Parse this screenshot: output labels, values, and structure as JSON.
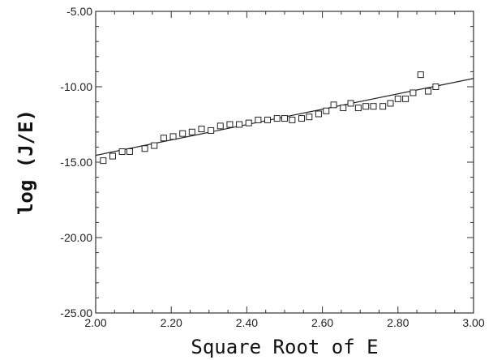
{
  "chart_data": {
    "type": "scatter",
    "title": "",
    "xlabel": "Square Root of E",
    "ylabel": "log  (J/E)",
    "xlim": [
      2.0,
      3.0
    ],
    "ylim": [
      -25.0,
      -5.0
    ],
    "x_ticks": [
      2.0,
      2.2,
      2.4,
      2.6,
      2.8,
      3.0
    ],
    "x_tick_labels": [
      "2.00",
      "2.20",
      "2.40",
      "2.60",
      "2.80",
      "3.00"
    ],
    "y_ticks": [
      -5.0,
      -10.0,
      -15.0,
      -20.0,
      -25.0
    ],
    "y_tick_labels": [
      "-5.00",
      "-10.00",
      "-15.00",
      "-20.00",
      "-25.00"
    ],
    "grid": false,
    "marker": "open-square",
    "series": [
      {
        "x": [
          2.02,
          2.045,
          2.07,
          2.09,
          2.13,
          2.155,
          2.18,
          2.205,
          2.23,
          2.255,
          2.28,
          2.305,
          2.33,
          2.355,
          2.38,
          2.405,
          2.43,
          2.455,
          2.48,
          2.5,
          2.52,
          2.545,
          2.565,
          2.59,
          2.61,
          2.63,
          2.655,
          2.675,
          2.695,
          2.715,
          2.735,
          2.76,
          2.78,
          2.8,
          2.82,
          2.84,
          2.86,
          2.88,
          2.9
        ],
        "y": [
          -14.9,
          -14.6,
          -14.3,
          -14.3,
          -14.1,
          -13.9,
          -13.4,
          -13.3,
          -13.1,
          -13.0,
          -12.8,
          -12.9,
          -12.6,
          -12.5,
          -12.5,
          -12.4,
          -12.2,
          -12.2,
          -12.1,
          -12.1,
          -12.2,
          -12.1,
          -12.0,
          -11.8,
          -11.6,
          -11.2,
          -11.4,
          -11.1,
          -11.4,
          -11.3,
          -11.3,
          -11.3,
          -11.1,
          -10.8,
          -10.8,
          -10.4,
          -9.2,
          -10.3,
          -10.0
        ]
      }
    ],
    "fit_line": {
      "x": [
        2.0,
        3.0
      ],
      "y": [
        -14.55,
        -9.45
      ]
    }
  }
}
